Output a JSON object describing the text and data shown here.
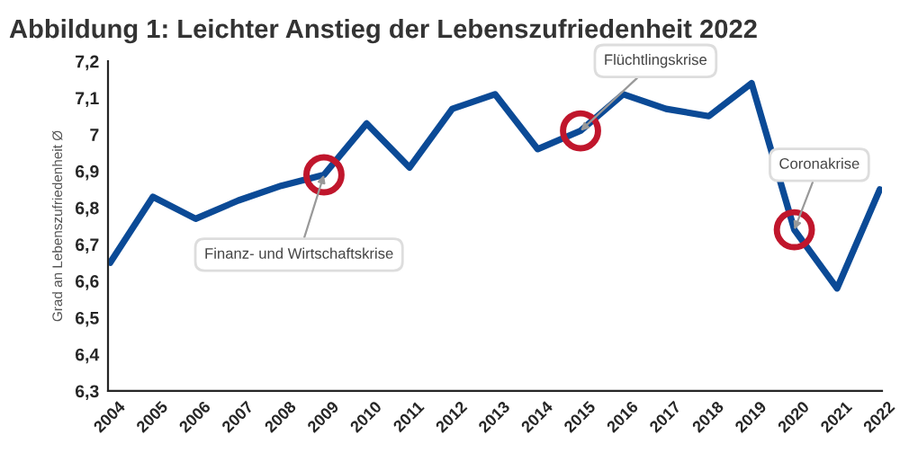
{
  "chart_data": {
    "type": "line",
    "title": "Abbildung 1: Leichter Anstieg der Lebenszufriedenheit 2022",
    "ylabel": "Grad an Lebenszufriedenheit Ø",
    "categories": [
      "2004",
      "2005",
      "2006",
      "2007",
      "2008",
      "2009",
      "2010",
      "2011",
      "2012",
      "2013",
      "2014",
      "2015",
      "2016",
      "2017",
      "2018",
      "2019",
      "2020",
      "2021",
      "2022"
    ],
    "series": [
      {
        "color": "#0b4a96",
        "values": [
          6.65,
          6.83,
          6.77,
          6.82,
          6.86,
          6.89,
          7.03,
          6.91,
          7.07,
          7.11,
          6.96,
          7.01,
          7.11,
          7.07,
          7.05,
          7.14,
          6.74,
          6.58,
          6.85
        ]
      }
    ],
    "ylim": [
      6.3,
      7.2
    ],
    "yticks": [
      {
        "value": 6.3,
        "label": "6,3"
      },
      {
        "value": 6.4,
        "label": "6,4"
      },
      {
        "value": 6.5,
        "label": "6,5"
      },
      {
        "value": 6.6,
        "label": "6,6"
      },
      {
        "value": 6.7,
        "label": "6,7"
      },
      {
        "value": 6.8,
        "label": "6,8"
      },
      {
        "value": 6.9,
        "label": "6,9"
      },
      {
        "value": 7,
        "label": "7"
      },
      {
        "value": 7.1,
        "label": "7,1"
      },
      {
        "value": 7.2,
        "label": "7,2"
      }
    ],
    "annotations": [
      {
        "text": "Finanz- und Wirtschaftskrise",
        "x": "2009",
        "y": 6.89
      },
      {
        "text": "Flüchtlingskrise",
        "x": "2015",
        "y": 7.01
      },
      {
        "text": "Coronakrise",
        "x": "2020",
        "y": 6.74
      }
    ],
    "grid": false,
    "legend": false,
    "marker": "none",
    "line_style": "solid"
  }
}
